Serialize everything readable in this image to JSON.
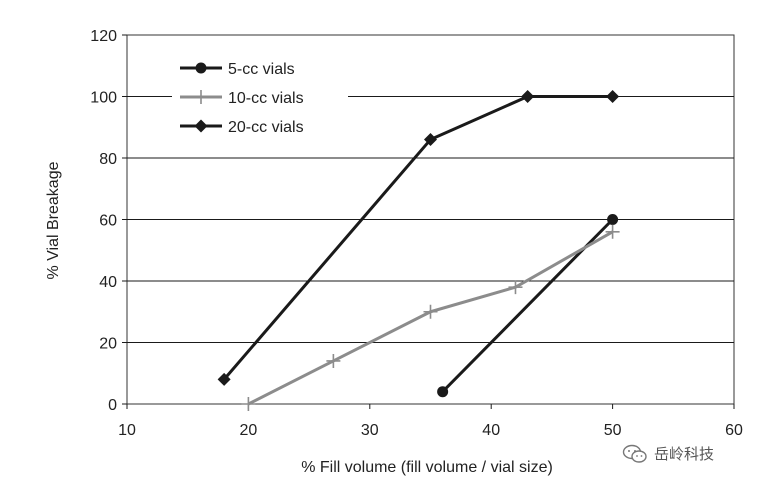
{
  "chart_data": {
    "type": "line",
    "title": "",
    "xlabel": "% Fill volume  (fill volume /  vial size)",
    "ylabel": "% Vial Breakage",
    "xlim": [
      10,
      60
    ],
    "ylim": [
      0,
      120
    ],
    "xticks": [
      "10",
      "20",
      "30",
      "40",
      "50",
      "60"
    ],
    "yticks": [
      "0",
      "20",
      "40",
      "60",
      "80",
      "100",
      "120"
    ],
    "grid": "horizontal",
    "legend_position": "top-left",
    "series": [
      {
        "name": "5-cc vials",
        "marker": "circle",
        "color": "#1a1a1a",
        "points": [
          [
            36,
            4
          ],
          [
            50,
            60
          ]
        ]
      },
      {
        "name": "10-cc vials",
        "marker": "plus",
        "color": "#8c8c8c",
        "points": [
          [
            20,
            0
          ],
          [
            27,
            14
          ],
          [
            35,
            30
          ],
          [
            42,
            38
          ],
          [
            50,
            56
          ]
        ]
      },
      {
        "name": "20-cc vials",
        "marker": "diamond",
        "color": "#1a1a1a",
        "points": [
          [
            18,
            8
          ],
          [
            35,
            86
          ],
          [
            43,
            100
          ],
          [
            50,
            100
          ]
        ]
      }
    ]
  },
  "watermark": {
    "text": "岳岭科技",
    "icon": "wechat-icon"
  }
}
